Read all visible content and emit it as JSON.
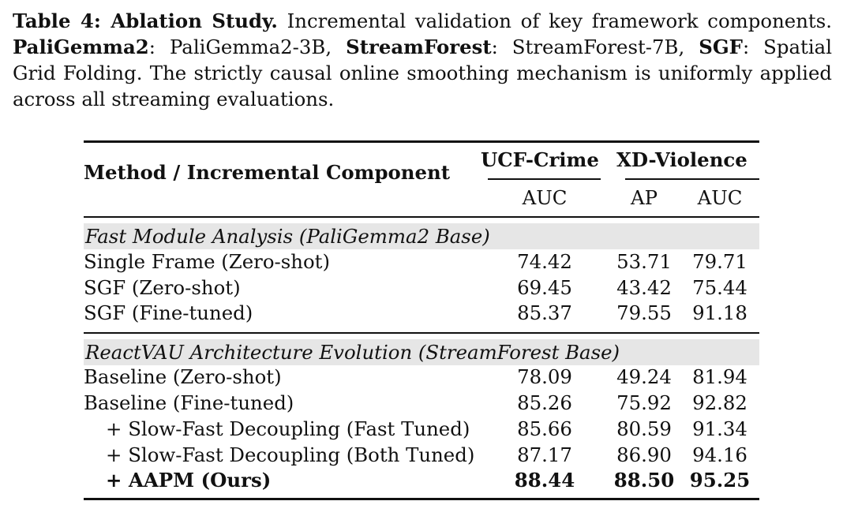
{
  "caption": {
    "label": "Table 4: Ablation Study.",
    "intro": " Incremental validation of key framework components.",
    "term1": "PaliGemma2",
    "def1": ": PaliGemma2-3B, ",
    "term2": "StreamForest",
    "def2": ": StreamForest-7B, ",
    "term3": "SGF",
    "def3": ": Spatial Grid Folding. The strictly causal online smoothing mechanism is uniformly applied across all streaming evaluations."
  },
  "table": {
    "header": {
      "method": "Method / Incremental Component",
      "group1": "UCF-Crime",
      "group2": "XD-Violence",
      "col1": "AUC",
      "col2": "AP",
      "col3": "AUC"
    },
    "section1": {
      "title": "Fast Module Analysis (PaliGemma2 Base)",
      "rows": [
        {
          "method": "Single Frame (Zero-shot)",
          "v1": "74.42",
          "v2": "53.71",
          "v3": "79.71"
        },
        {
          "method": "SGF (Zero-shot)",
          "v1": "69.45",
          "v2": "43.42",
          "v3": "75.44"
        },
        {
          "method": "SGF (Fine-tuned)",
          "v1": "85.37",
          "v2": "79.55",
          "v3": "91.18"
        }
      ]
    },
    "section2": {
      "title": "ReactVAU Architecture Evolution (StreamForest Base)",
      "rows": [
        {
          "method": "Baseline (Zero-shot)",
          "v1": "78.09",
          "v2": "49.24",
          "v3": "81.94"
        },
        {
          "method": "Baseline (Fine-tuned)",
          "v1": "85.26",
          "v2": "75.92",
          "v3": "92.82"
        },
        {
          "method": "+ Slow-Fast Decoupling (Fast Tuned)",
          "v1": "85.66",
          "v2": "80.59",
          "v3": "91.34"
        },
        {
          "method": "+ Slow-Fast Decoupling (Both Tuned)",
          "v1": "87.17",
          "v2": "86.90",
          "v3": "94.16"
        },
        {
          "method": "+ AAPM (Ours)",
          "v1": "88.44",
          "v2": "88.50",
          "v3": "95.25"
        }
      ]
    }
  }
}
